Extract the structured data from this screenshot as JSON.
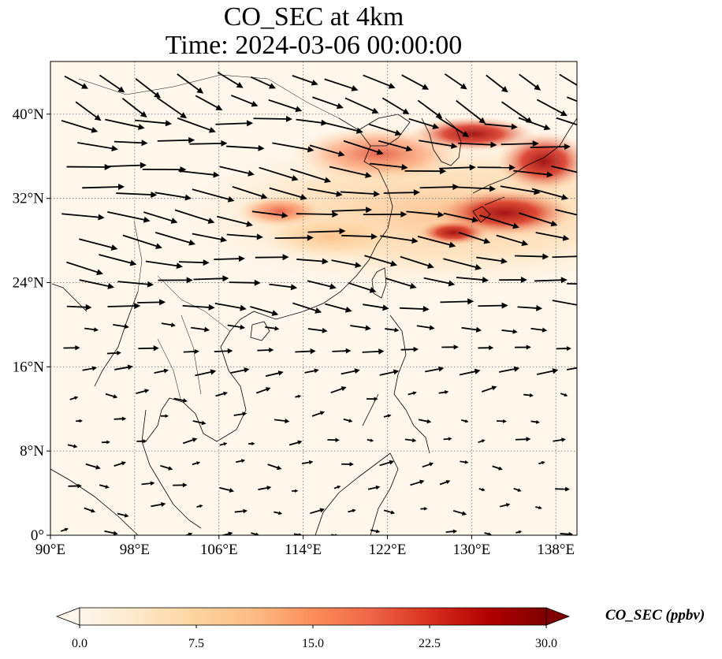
{
  "title": {
    "line1": "CO_SEC at 4km",
    "line2": "Time: 2024-03-06 00:00:00"
  },
  "map": {
    "projection": "PlateCarree",
    "lon_range": [
      90,
      140
    ],
    "lat_range": [
      0,
      45
    ],
    "gridlines": true,
    "gridline_style": "dotted",
    "lon_ticks": [
      {
        "value": 90,
        "label": "90°E"
      },
      {
        "value": 98,
        "label": "98°E"
      },
      {
        "value": 106,
        "label": "106°E"
      },
      {
        "value": 114,
        "label": "114°E"
      },
      {
        "value": 122,
        "label": "122°E"
      },
      {
        "value": 130,
        "label": "130°E"
      },
      {
        "value": 138,
        "label": "138°E"
      }
    ],
    "lat_ticks": [
      {
        "value": 0,
        "label": "0°"
      },
      {
        "value": 8,
        "label": "8°N"
      },
      {
        "value": 16,
        "label": "16°N"
      },
      {
        "value": 24,
        "label": "24°N"
      },
      {
        "value": 32,
        "label": "32°N"
      },
      {
        "value": 40,
        "label": "40°N"
      }
    ],
    "coastlines": true,
    "wind_vectors": true
  },
  "colorbar": {
    "label": "CO_SEC (ppbv)",
    "min": 0.0,
    "max": 30.0,
    "extend": "both",
    "colormap": "OrRd",
    "ticks": [
      {
        "value": 0,
        "label": "0.0"
      },
      {
        "value": 7.5,
        "label": "7.5"
      },
      {
        "value": 15,
        "label": "15.0"
      },
      {
        "value": 22.5,
        "label": "22.5"
      },
      {
        "value": 30,
        "label": "30.0"
      }
    ],
    "colors": [
      "#fff7ec",
      "#fee8c8",
      "#fdd49e",
      "#fdbb84",
      "#fc8d59",
      "#ef6548",
      "#d7301f",
      "#b30000",
      "#7f0000"
    ]
  }
}
